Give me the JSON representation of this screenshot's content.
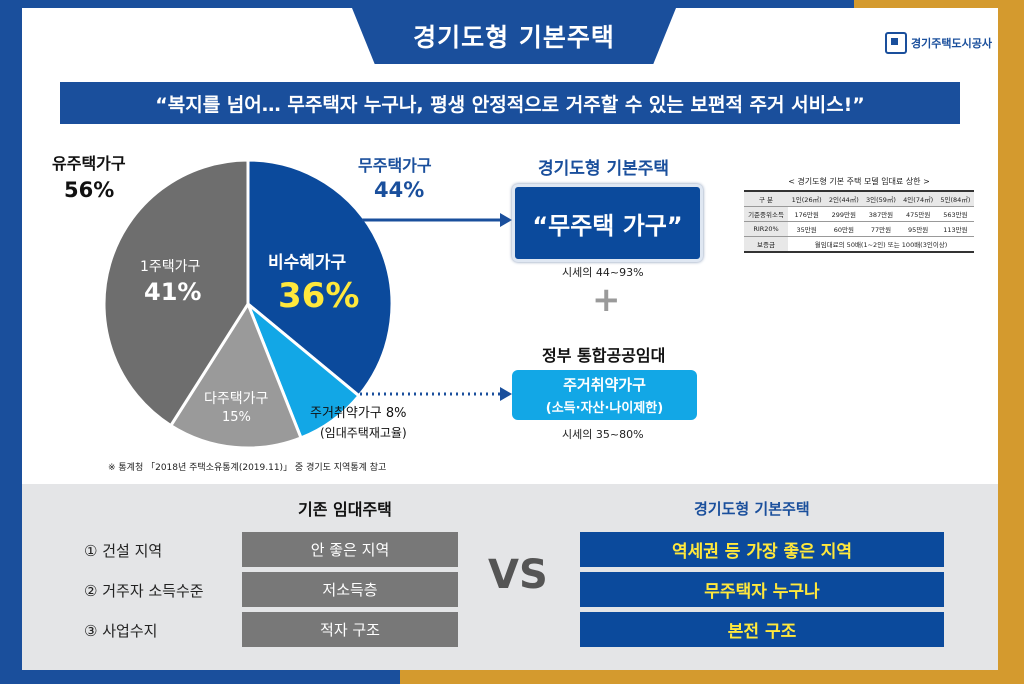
{
  "header": {
    "title": "경기도형  기본주택",
    "logo_text": "경기주택도시공사"
  },
  "banner": {
    "text": "“복지를 넘어… 무주택자 누구나, 평생 안정적으로 거주할 수 있는 보편적 주거 서비스!”"
  },
  "chart_data": {
    "type": "pie",
    "slices": [
      {
        "label": "비수혜가구",
        "value": 36,
        "value_text": "36%",
        "color": "#0b4a9c"
      },
      {
        "label": "주거취약가구 8%",
        "value": 8,
        "value_text": "",
        "color": "#12a7e6",
        "sub": "(임대주택재고율)"
      },
      {
        "label": "다주택가구",
        "value": 15,
        "value_text": "15%",
        "color": "#9a9a9a"
      },
      {
        "label": "1주택가구",
        "value": 41,
        "value_text": "41%",
        "color": "#6e6e6e"
      }
    ],
    "groups": [
      {
        "label": "유주택가구",
        "value_text": "56%"
      },
      {
        "label": "무주택가구",
        "value_text": "44%"
      }
    ],
    "source_note": "※ 통계청 「2018년 주택소유통계(2019.11)」 중  경기도  지역통계 참고"
  },
  "right": {
    "top_title": "경기도형 기본주택",
    "top_box": "“무주택 가구”",
    "top_note": "시세의 44~93%",
    "plus": "+",
    "bottom_title": "정부 통합공공임대",
    "bottom_box_line1": "주거취약가구",
    "bottom_box_line2": "(소득·자산·나이제한)",
    "bottom_note": "시세의 35~80%"
  },
  "mini_table": {
    "caption": "< 경기도형 기본 주택 모델 임대료 상한 >",
    "rows": [
      [
        "구 분",
        "1인(26㎡)",
        "2인(44㎡)",
        "3인(59㎡)",
        "4인(74㎡)",
        "5인(84㎡)"
      ],
      [
        "기준중위소득",
        "176만원",
        "299만원",
        "387만원",
        "475만원",
        "563만원"
      ],
      [
        "RIR20%",
        "35만원",
        "60만원",
        "77만원",
        "95만원",
        "113만원"
      ]
    ],
    "last_row": [
      "보증금",
      "월임대료의 50배(1~2인) 또는 100배(3인이상)"
    ]
  },
  "comparison": {
    "left_header": "기존 임대주택",
    "right_header": "경기도형 기본주택",
    "vs": "VS",
    "rows": [
      {
        "label": "① 건설 지역",
        "old": "안 좋은 지역",
        "new": "역세권 등 가장 좋은 지역"
      },
      {
        "label": "② 거주자 소득수준",
        "old": "저소득층",
        "new": "무주택자 누구나"
      },
      {
        "label": "③ 사업수지",
        "old": "적자 구조",
        "new": "본전 구조"
      }
    ]
  }
}
